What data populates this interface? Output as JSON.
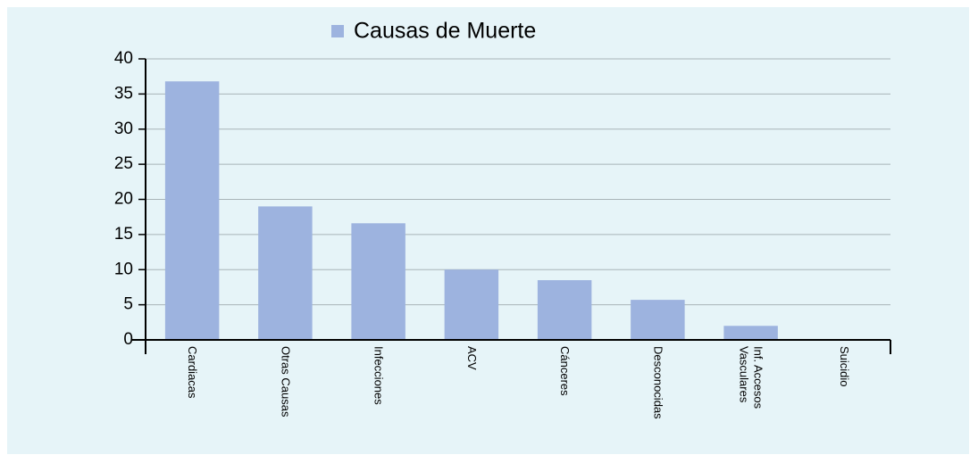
{
  "chart_data": {
    "type": "bar",
    "legend": "Causas de Muerte",
    "categories": [
      "Cardiacas",
      "Otras Causas",
      "Infecciones",
      "ACV",
      "Cánceres",
      "Desconocidas",
      "Inf. Accesos Vasculares",
      "Suicidio"
    ],
    "values": [
      36.8,
      19,
      16.6,
      10,
      8.5,
      5.7,
      2,
      0
    ],
    "color": "#9db3df",
    "ylim": [
      0,
      40
    ],
    "yticks": [
      0,
      5,
      10,
      15,
      20,
      25,
      30,
      35,
      40
    ],
    "grid": true
  }
}
